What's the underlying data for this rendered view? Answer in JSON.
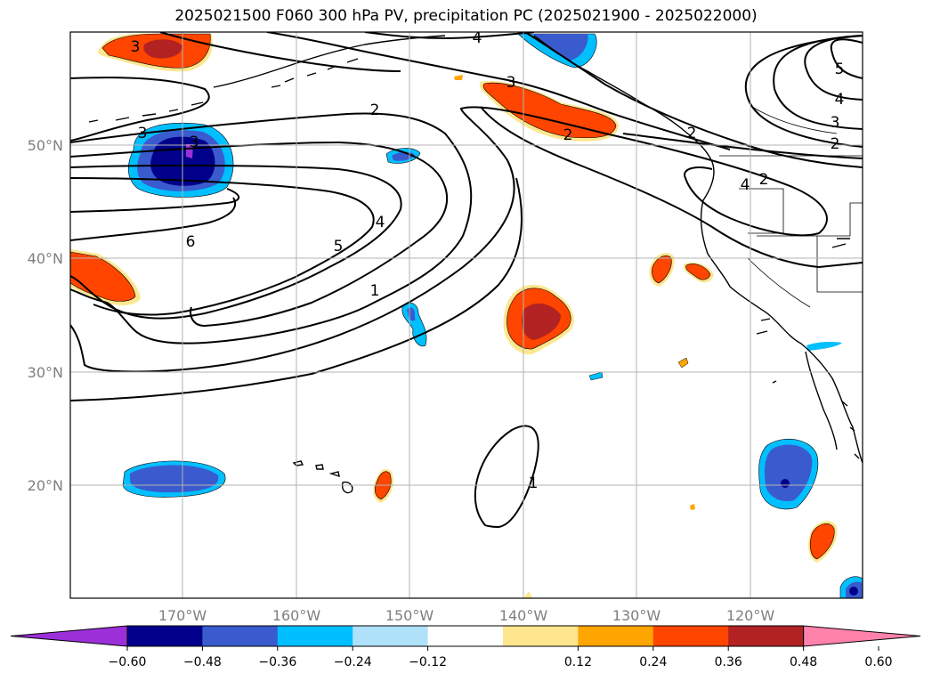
{
  "title": "2025021500 F060 300 hPa PV, precipitation PC (2025021900 - 2025022000)",
  "lat_labels": [
    "50°N",
    "40°N",
    "30°N",
    "20°N"
  ],
  "lon_labels": [
    "170°W",
    "160°W",
    "150°W",
    "140°W",
    "130°W",
    "120°W"
  ],
  "contour_labels": [
    "3",
    "4",
    "3",
    "5",
    "4",
    "3",
    "2",
    "2",
    "3",
    "2",
    "2",
    "2",
    "3",
    "4",
    "6",
    "5",
    "4",
    "1",
    "1"
  ],
  "colorbar": {
    "colors": [
      "#9b30d9",
      "#00008b",
      "#3a5bcd",
      "#00bfff",
      "#afe1fa",
      "#ffffff",
      "#fde68e",
      "#ffa500",
      "#ff4500",
      "#b22222",
      "#ff82ab"
    ],
    "ticks": [
      "−0.60",
      "−0.48",
      "−0.36",
      "−0.24",
      "−0.12",
      "0.12",
      "0.24",
      "0.36",
      "0.48",
      "0.60"
    ]
  }
}
